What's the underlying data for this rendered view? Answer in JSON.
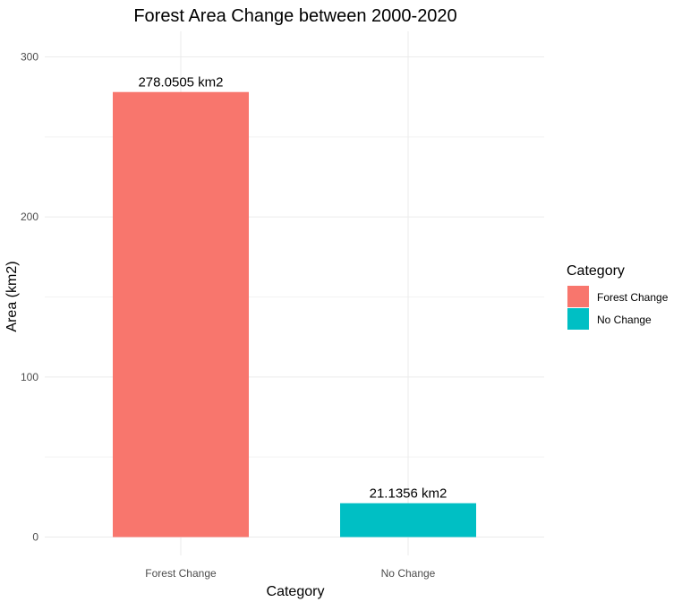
{
  "chart_data": {
    "type": "bar",
    "title": "Forest Area Change between 2000-2020",
    "xlabel": "Category",
    "ylabel": "Area (km2)",
    "categories": [
      "Forest Change",
      "No Change"
    ],
    "values": [
      278.0505,
      21.1356
    ],
    "data_labels": [
      "278.0505 km2",
      "21.1356 km2"
    ],
    "colors": [
      "#F8766D",
      "#00BFC4"
    ],
    "ylim": [
      0,
      320
    ],
    "yticks": [
      0,
      100,
      200,
      300
    ],
    "ytick_labels": [
      "0",
      "100",
      "200",
      "300"
    ],
    "grid": true,
    "legend": {
      "title": "Category",
      "placement": "right",
      "entries": [
        "Forest Change",
        "No Change"
      ]
    }
  }
}
